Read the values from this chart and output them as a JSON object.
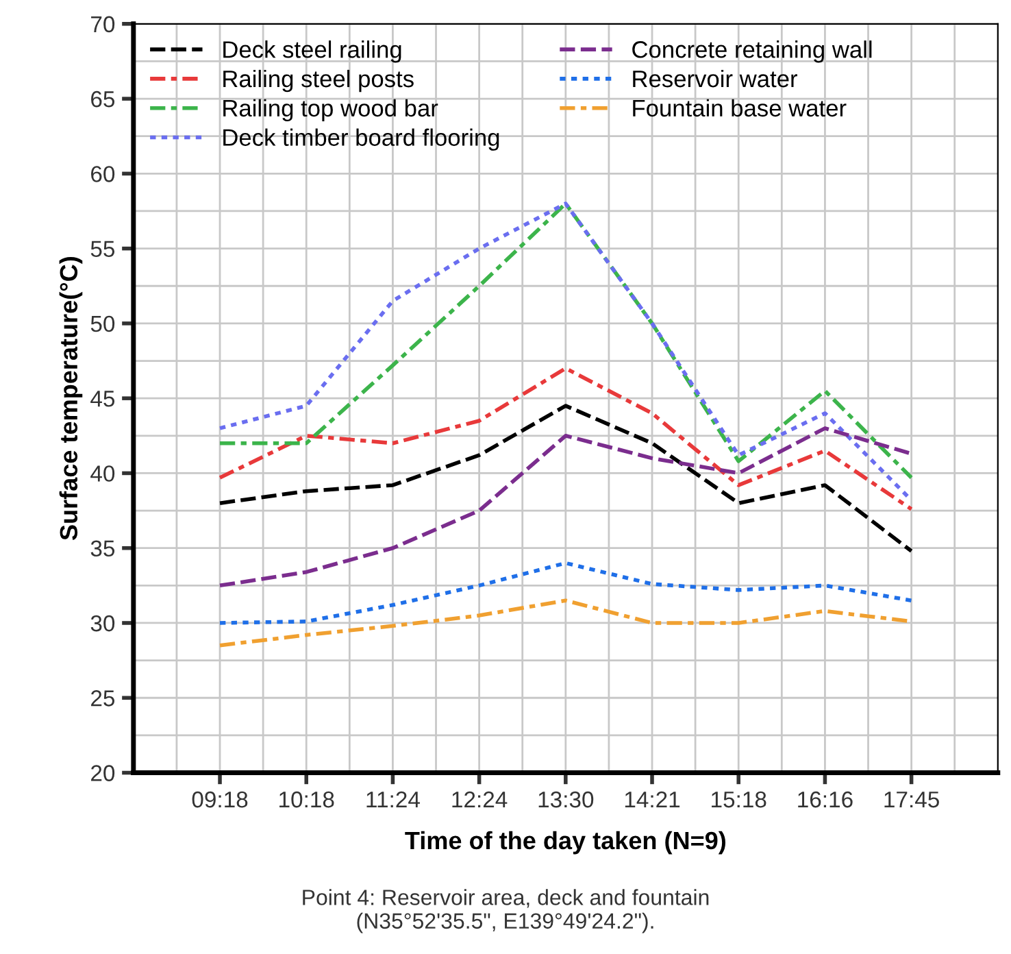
{
  "chart_data": {
    "type": "line",
    "xlabel": "Time of the day taken (N=9)",
    "ylabel": "Surface temperature(°C)",
    "categories": [
      "09:18",
      "10:18",
      "11:24",
      "12:24",
      "13:30",
      "14:21",
      "15:18",
      "16:16",
      "17:45"
    ],
    "series": [
      {
        "name": "Deck steel railing",
        "color": "#000000",
        "line_style": "dashed",
        "values": [
          38,
          38.8,
          39.2,
          41.2,
          44.5,
          42,
          38,
          39.2,
          34.8
        ]
      },
      {
        "name": "Railing steel posts",
        "color": "#e8393a",
        "line_style": "dashdot",
        "values": [
          39.7,
          42.5,
          42,
          43.5,
          47,
          44,
          39.2,
          41.5,
          37.6
        ]
      },
      {
        "name": "Railing top wood bar",
        "color": "#3cb44b",
        "line_style": "dashdot",
        "values": [
          42,
          42,
          47.2,
          52.5,
          58,
          50,
          40.8,
          45.5,
          39.7
        ]
      },
      {
        "name": "Deck timber board flooring",
        "color": "#6a6ef0",
        "line_style": "dotted",
        "values": [
          43,
          44.5,
          51.5,
          55,
          58,
          50,
          41.2,
          44,
          38.2
        ]
      },
      {
        "name": "Concrete retaining wall",
        "color": "#7b2d8e",
        "line_style": "dashed",
        "values": [
          32.5,
          33.4,
          35,
          37.5,
          42.5,
          41,
          40,
          43,
          41.3
        ]
      },
      {
        "name": "Reservoir water",
        "color": "#1f6fe8",
        "line_style": "dotted",
        "values": [
          30,
          30.1,
          31.2,
          32.5,
          34,
          32.6,
          32.2,
          32.5,
          31.5
        ]
      },
      {
        "name": "Fountain base water",
        "color": "#f0a030",
        "line_style": "dashdot",
        "values": [
          28.5,
          29.2,
          29.8,
          30.5,
          31.5,
          30,
          30,
          30.8,
          30.1
        ]
      }
    ],
    "ylim": [
      20,
      70
    ],
    "yticks": [
      20,
      25,
      30,
      35,
      40,
      45,
      50,
      55,
      60,
      65,
      70
    ],
    "grid": true,
    "legend": "top left",
    "marker": "none",
    "annotations": [
      "Point 4: Reservoir area, deck and fountain\n(N35°52'35.5\", E139°49'24.2\")."
    ]
  }
}
